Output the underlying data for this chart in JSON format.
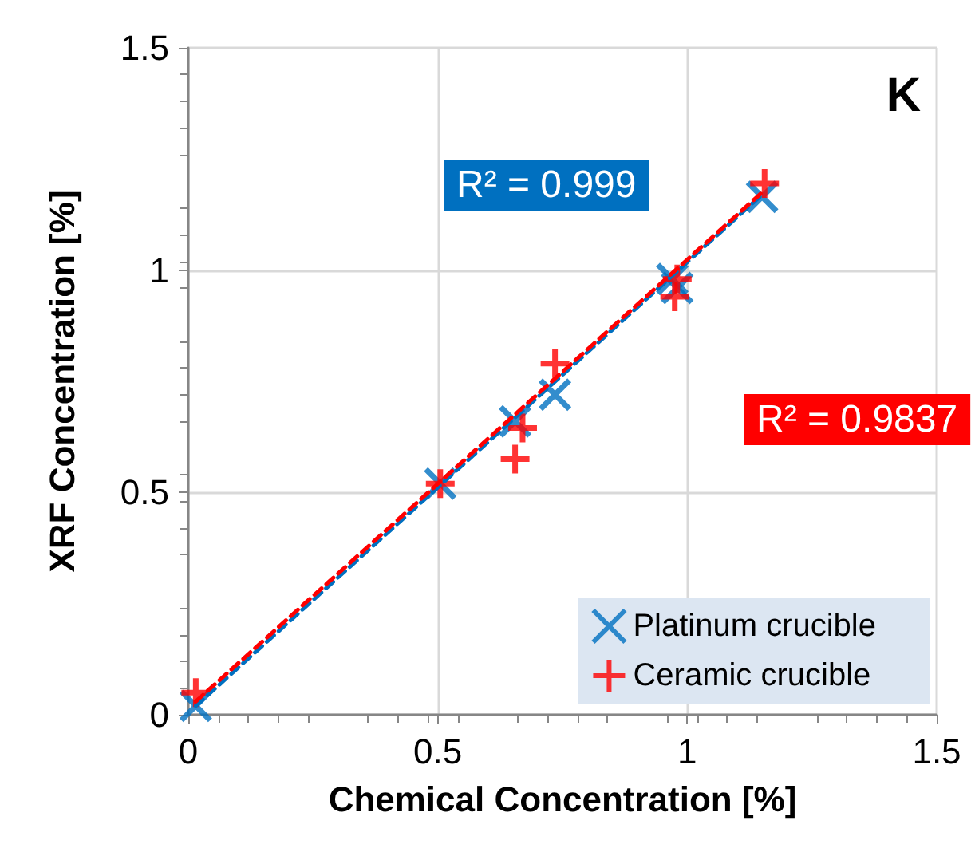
{
  "chart_data": {
    "type": "scatter",
    "xlabel": "Chemical Concentration [%]",
    "ylabel": "XRF Concentration [%]",
    "annotations": [
      "K",
      "R² = 0.999",
      "R² = 0.9837"
    ],
    "series": [
      {
        "name": "Platinum crucible",
        "color": "#0070c0",
        "marker": "x",
        "x": [
          0.015,
          0.505,
          0.655,
          0.735,
          0.97,
          0.98,
          1.15
        ],
        "values": [
          0.02,
          0.52,
          0.66,
          0.72,
          0.98,
          0.96,
          1.165
        ]
      },
      {
        "name": "Ceramic crucible",
        "color": "#ff0000",
        "marker": "cross",
        "x": [
          0.015,
          0.505,
          0.67,
          0.655,
          0.735,
          0.98,
          0.975,
          1.155
        ],
        "values": [
          0.05,
          0.52,
          0.645,
          0.575,
          0.79,
          0.98,
          0.94,
          1.195
        ]
      },
      {
        "type": "line",
        "color": "#0070c0",
        "line_style": "dashed",
        "x": [
          0.015,
          1.15
        ],
        "values": [
          0.02,
          1.17
        ]
      },
      {
        "type": "line",
        "color": "#ff0000",
        "line_style": "dashed",
        "x": [
          0.015,
          1.155
        ],
        "values": [
          0.03,
          1.18
        ]
      }
    ],
    "xlim": [
      0,
      1.5
    ],
    "xticks": [
      0,
      0.5,
      1,
      1.5
    ],
    "ylim": [
      0,
      1.5
    ],
    "yticks": [
      0,
      0.5,
      1,
      1.5
    ],
    "grid": true,
    "legend": "bottom right"
  }
}
